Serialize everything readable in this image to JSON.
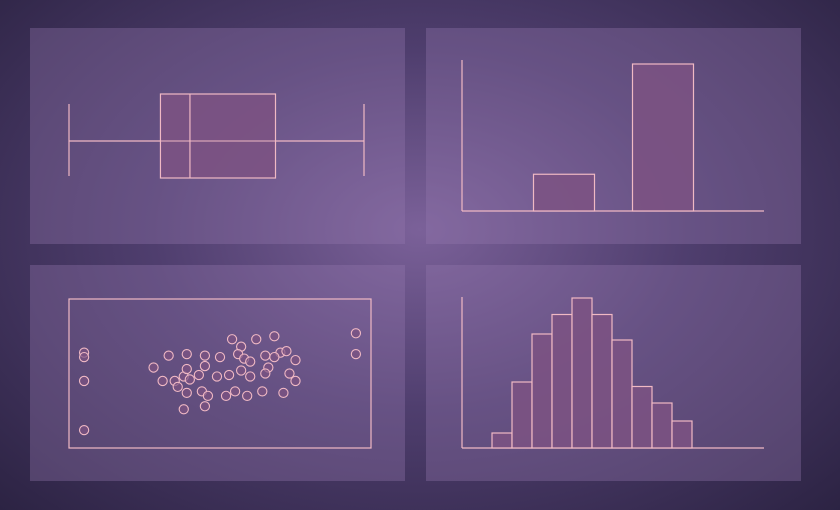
{
  "colors": {
    "stroke": "#f0b9c4",
    "fill": "#7d5282"
  },
  "chart_data": [
    {
      "type": "box",
      "whisker_low": 0,
      "q1": 31,
      "median": 41,
      "q3": 70,
      "whisker_high": 100,
      "xlim": [
        0,
        100
      ]
    },
    {
      "type": "bar",
      "categories": [
        "",
        "",
        "",
        ""
      ],
      "values": [
        0,
        25,
        0,
        100
      ],
      "ylim": [
        0,
        100
      ]
    },
    {
      "type": "scatter",
      "xlim": [
        0,
        100
      ],
      "ylim": [
        0,
        100
      ],
      "points": [
        [
          5,
          64
        ],
        [
          5,
          61
        ],
        [
          5,
          45
        ],
        [
          5,
          12
        ],
        [
          95,
          77
        ],
        [
          95,
          63
        ],
        [
          28,
          54
        ],
        [
          33,
          62
        ],
        [
          39,
          63
        ],
        [
          45,
          62
        ],
        [
          50,
          61
        ],
        [
          54,
          73
        ],
        [
          57,
          68
        ],
        [
          62,
          73
        ],
        [
          68,
          75
        ],
        [
          70,
          64
        ],
        [
          72,
          65
        ],
        [
          75,
          59
        ],
        [
          31,
          45
        ],
        [
          35,
          45
        ],
        [
          38,
          48
        ],
        [
          39,
          53
        ],
        [
          43,
          49
        ],
        [
          45,
          55
        ],
        [
          49,
          48
        ],
        [
          53,
          49
        ],
        [
          56,
          63
        ],
        [
          58,
          60
        ],
        [
          60,
          58
        ],
        [
          65,
          62
        ],
        [
          68,
          61
        ],
        [
          66,
          54
        ],
        [
          65,
          50
        ],
        [
          60,
          48
        ],
        [
          57,
          52
        ],
        [
          36,
          41
        ],
        [
          39,
          37
        ],
        [
          44,
          38
        ],
        [
          40,
          46
        ],
        [
          46,
          35
        ],
        [
          52,
          35
        ],
        [
          55,
          38
        ],
        [
          59,
          35
        ],
        [
          64,
          38
        ],
        [
          71,
          37
        ],
        [
          73,
          50
        ],
        [
          75,
          45
        ],
        [
          38,
          26
        ],
        [
          45,
          28
        ]
      ]
    },
    {
      "type": "histogram",
      "bins": 10,
      "values": [
        10,
        44,
        76,
        89,
        100,
        89,
        72,
        41,
        30,
        18
      ],
      "ylim": [
        0,
        100
      ]
    }
  ]
}
